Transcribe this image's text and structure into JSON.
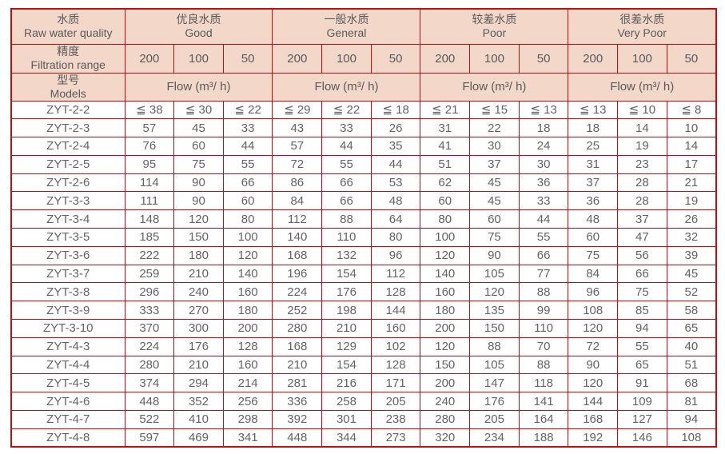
{
  "colors": {
    "border_red": "#c40d11",
    "header_background": "#f3d8ca",
    "header_text": "#595959",
    "cell_text": "#636363"
  },
  "table": {
    "header": {
      "raw_water_quality_zh": "水质",
      "raw_water_quality_en": "Raw water quality",
      "filtration_range_zh": "精度",
      "filtration_range_en": "Filtration range",
      "models_zh": "型号",
      "models_en": "Models",
      "groups": [
        {
          "zh": "优良水质",
          "en": "Good"
        },
        {
          "zh": "一般水质",
          "en": "General"
        },
        {
          "zh": "较差水质",
          "en": "Poor"
        },
        {
          "zh": "很差水质",
          "en": "Very Poor"
        }
      ],
      "range_values": [
        "200",
        "100",
        "50"
      ],
      "flow_label": "Flow (m³/ h)"
    },
    "rows": [
      {
        "model": "ZYT-2-2",
        "values": [
          "≦ 38",
          "≦ 30",
          "≦ 22",
          "≦ 29",
          "≦ 22",
          "≦ 18",
          "≦ 21",
          "≦ 15",
          "≦ 13",
          "≦ 13",
          "≦ 10",
          "≦ 8"
        ]
      },
      {
        "model": "ZYT-2-3",
        "values": [
          "57",
          "45",
          "33",
          "43",
          "33",
          "26",
          "31",
          "22",
          "18",
          "18",
          "14",
          "10"
        ]
      },
      {
        "model": "ZYT-2-4",
        "values": [
          "76",
          "60",
          "44",
          "57",
          "44",
          "35",
          "41",
          "30",
          "24",
          "25",
          "19",
          "14"
        ]
      },
      {
        "model": "ZYT-2-5",
        "values": [
          "95",
          "75",
          "55",
          "72",
          "55",
          "44",
          "51",
          "37",
          "30",
          "31",
          "23",
          "17"
        ]
      },
      {
        "model": "ZYT-2-6",
        "values": [
          "114",
          "90",
          "66",
          "86",
          "66",
          "53",
          "62",
          "45",
          "36",
          "37",
          "28",
          "21"
        ]
      },
      {
        "model": "ZYT-3-3",
        "values": [
          "111",
          "90",
          "60",
          "84",
          "66",
          "48",
          "60",
          "45",
          "33",
          "36",
          "28",
          "19"
        ]
      },
      {
        "model": "ZYT-3-4",
        "values": [
          "148",
          "120",
          "80",
          "112",
          "88",
          "64",
          "80",
          "60",
          "44",
          "48",
          "37",
          "26"
        ]
      },
      {
        "model": "ZYT-3-5",
        "values": [
          "185",
          "150",
          "100",
          "140",
          "110",
          "80",
          "100",
          "75",
          "55",
          "60",
          "47",
          "32"
        ]
      },
      {
        "model": "ZYT-3-6",
        "values": [
          "222",
          "180",
          "120",
          "168",
          "132",
          "96",
          "120",
          "90",
          "66",
          "75",
          "56",
          "39"
        ]
      },
      {
        "model": "ZYT-3-7",
        "values": [
          "259",
          "210",
          "140",
          "196",
          "154",
          "112",
          "140",
          "105",
          "77",
          "84",
          "66",
          "45"
        ]
      },
      {
        "model": "ZYT-3-8",
        "values": [
          "296",
          "240",
          "160",
          "224",
          "176",
          "128",
          "160",
          "120",
          "88",
          "96",
          "75",
          "52"
        ]
      },
      {
        "model": "ZYT-3-9",
        "values": [
          "333",
          "270",
          "180",
          "252",
          "198",
          "144",
          "180",
          "135",
          "99",
          "108",
          "85",
          "58"
        ]
      },
      {
        "model": "ZYT-3-10",
        "values": [
          "370",
          "300",
          "200",
          "280",
          "210",
          "160",
          "200",
          "150",
          "110",
          "120",
          "94",
          "65"
        ]
      },
      {
        "model": "ZYT-4-3",
        "values": [
          "224",
          "176",
          "128",
          "168",
          "129",
          "102",
          "120",
          "88",
          "70",
          "72",
          "55",
          "40"
        ]
      },
      {
        "model": "ZYT-4-4",
        "values": [
          "280",
          "210",
          "160",
          "210",
          "154",
          "128",
          "150",
          "105",
          "88",
          "90",
          "65",
          "51"
        ]
      },
      {
        "model": "ZYT-4-5",
        "values": [
          "374",
          "294",
          "214",
          "281",
          "216",
          "171",
          "200",
          "147",
          "118",
          "120",
          "91",
          "68"
        ]
      },
      {
        "model": "ZYT-4-6",
        "values": [
          "448",
          "352",
          "256",
          "336",
          "258",
          "205",
          "240",
          "176",
          "141",
          "144",
          "109",
          "81"
        ]
      },
      {
        "model": "ZYT-4-7",
        "values": [
          "522",
          "410",
          "298",
          "392",
          "301",
          "238",
          "280",
          "205",
          "164",
          "168",
          "127",
          "94"
        ]
      },
      {
        "model": "ZYT-4-8",
        "values": [
          "597",
          "469",
          "341",
          "448",
          "344",
          "273",
          "320",
          "234",
          "188",
          "192",
          "146",
          "108"
        ]
      }
    ]
  }
}
